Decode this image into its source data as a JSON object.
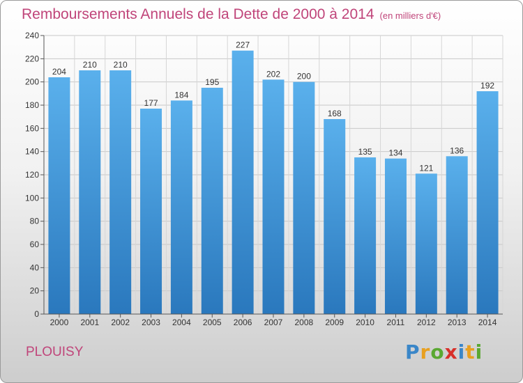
{
  "title": "Remboursements Annuels de la Dette de 2000 à 2014",
  "subtitle": "(en milliers d'€)",
  "town": "PLOUISY",
  "logo": {
    "letters": [
      "P",
      "r",
      "o",
      "x",
      "i",
      "t",
      "i"
    ],
    "colors": [
      "#3a86c8",
      "#e8a020",
      "#5aa832",
      "#d8302a",
      "#3a86c8",
      "#e8a020",
      "#5aa832"
    ]
  },
  "chart_data": {
    "type": "bar",
    "title": "Remboursements Annuels de la Dette de 2000 à 2014",
    "xlabel": "",
    "ylabel": "",
    "categories": [
      "2000",
      "2001",
      "2002",
      "2003",
      "2004",
      "2005",
      "2006",
      "2007",
      "2008",
      "2009",
      "2010",
      "2011",
      "2012",
      "2013",
      "2014"
    ],
    "values": [
      204,
      210,
      210,
      177,
      184,
      195,
      227,
      202,
      200,
      168,
      135,
      134,
      121,
      136,
      192
    ],
    "ylim": [
      0,
      240
    ],
    "yticks": [
      0,
      20,
      40,
      60,
      80,
      100,
      120,
      140,
      160,
      180,
      200,
      220,
      240
    ],
    "grid": true,
    "bar_color": "#3d95d8",
    "title_color": "#c0457a"
  }
}
